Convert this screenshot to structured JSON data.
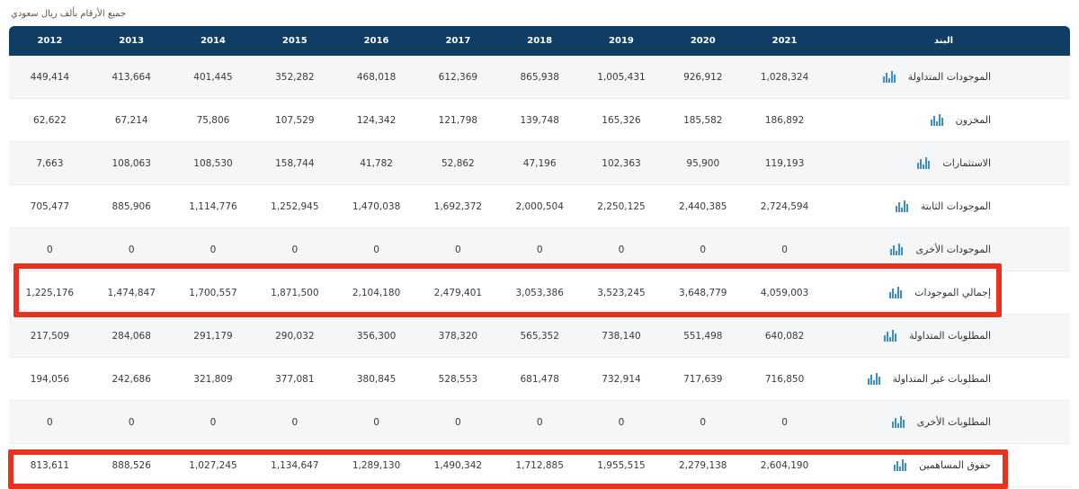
{
  "note": "جميع الأرقام بألف ريال سعودي",
  "header": {
    "years": [
      "2012",
      "2013",
      "2014",
      "2015",
      "2016",
      "2017",
      "2018",
      "2019",
      "2020",
      "2021"
    ],
    "label": "البند"
  },
  "rows": [
    {
      "label": "الموجودات المتداولة",
      "values": [
        "449,414",
        "413,664",
        "401,445",
        "352,282",
        "468,018",
        "612,369",
        "865,938",
        "1,005,431",
        "926,912",
        "1,028,324"
      ]
    },
    {
      "label": "المخزون",
      "values": [
        "62,622",
        "67,214",
        "75,806",
        "107,529",
        "124,342",
        "121,798",
        "139,748",
        "165,326",
        "185,582",
        "186,892"
      ]
    },
    {
      "label": "الاستثمارات",
      "values": [
        "7,663",
        "108,063",
        "108,530",
        "158,744",
        "41,782",
        "52,862",
        "47,196",
        "102,363",
        "95,900",
        "119,193"
      ]
    },
    {
      "label": "الموجودات الثابتة",
      "values": [
        "705,477",
        "885,906",
        "1,114,776",
        "1,252,945",
        "1,470,038",
        "1,692,372",
        "2,000,504",
        "2,250,125",
        "2,440,385",
        "2,724,594"
      ]
    },
    {
      "label": "الموجودات الأخرى",
      "values": [
        "0",
        "0",
        "0",
        "0",
        "0",
        "0",
        "0",
        "0",
        "0",
        "0"
      ]
    },
    {
      "label": "إجمالي الموجودات",
      "values": [
        "1,225,176",
        "1,474,847",
        "1,700,557",
        "1,871,500",
        "2,104,180",
        "2,479,401",
        "3,053,386",
        "3,523,245",
        "3,648,779",
        "4,059,003"
      ]
    },
    {
      "label": "المطلوبات المتداولة",
      "values": [
        "217,509",
        "284,068",
        "291,179",
        "290,032",
        "356,300",
        "378,320",
        "565,352",
        "738,140",
        "551,498",
        "640,082"
      ]
    },
    {
      "label": "المطلوبات غير المتداولة",
      "values": [
        "194,056",
        "242,686",
        "321,809",
        "377,081",
        "380,845",
        "528,553",
        "681,478",
        "732,914",
        "717,639",
        "716,850"
      ]
    },
    {
      "label": "المطلوبات الأخرى",
      "values": [
        "0",
        "0",
        "0",
        "0",
        "0",
        "0",
        "0",
        "0",
        "0",
        "0"
      ]
    },
    {
      "label": "حقوق المساهمين",
      "values": [
        "813,611",
        "888,526",
        "1,027,245",
        "1,134,647",
        "1,289,130",
        "1,490,342",
        "1,712,885",
        "1,955,515",
        "2,279,138",
        "2,604,190"
      ]
    }
  ],
  "highlighted_rows": [
    "إجمالي الموجودات",
    "حقوق المساهمين"
  ],
  "row_icon": "bar-chart-icon",
  "colors": {
    "header_bg": "#0f3d63",
    "highlight": "#e8321e",
    "icon": "#3a8fd0"
  }
}
